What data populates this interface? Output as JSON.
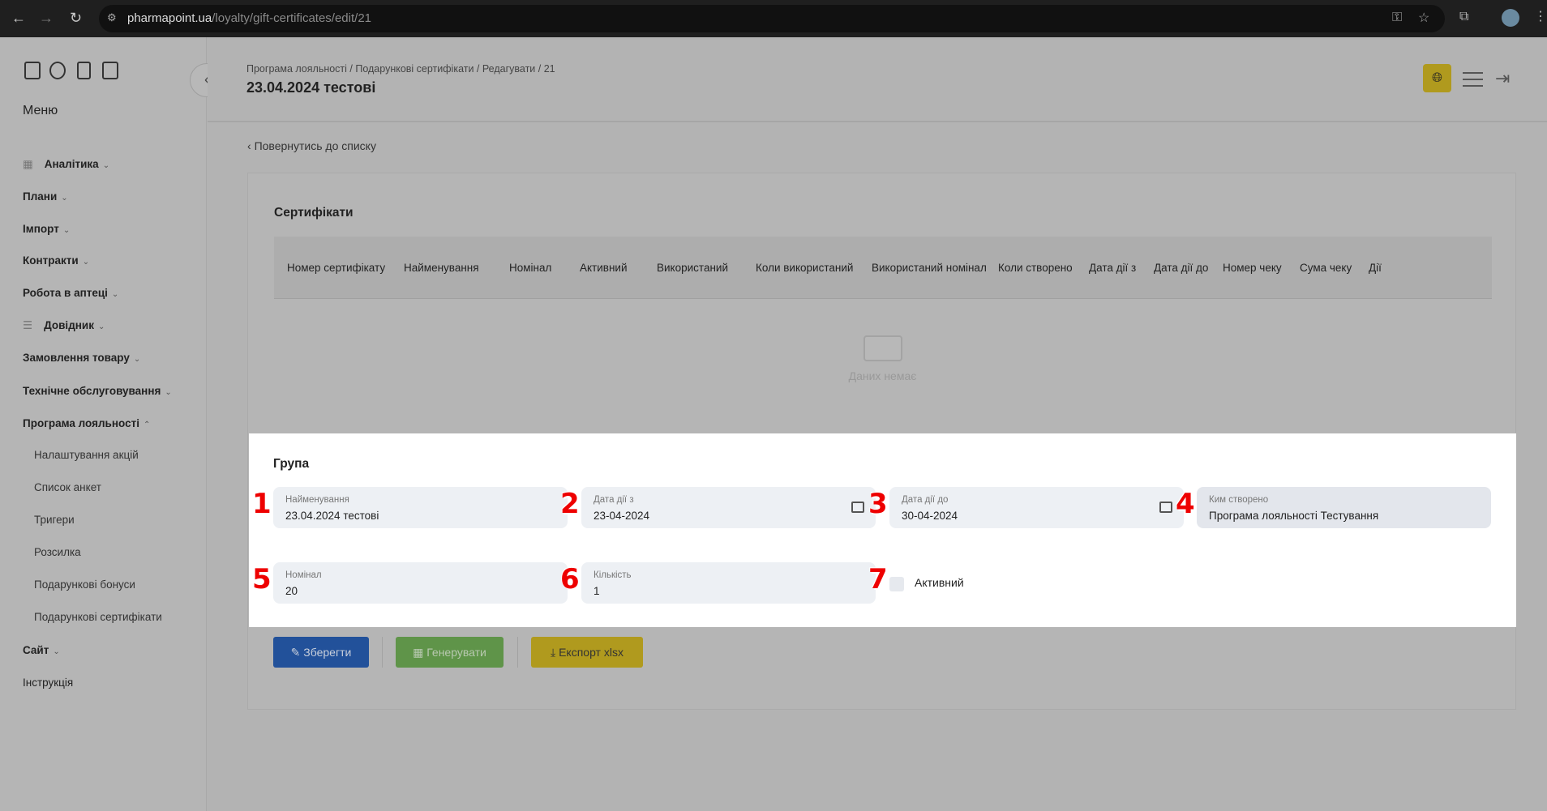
{
  "browser": {
    "url_host": "pharmapoint.ua",
    "url_path": "/loyalty/gift-certificates/edit/21"
  },
  "sidebar": {
    "menu_title": "Меню",
    "items": [
      {
        "label": "Аналітика",
        "icon": "table-icon",
        "expanded": false
      },
      {
        "label": "Плани",
        "expanded": false
      },
      {
        "label": "Імпорт",
        "expanded": false
      },
      {
        "label": "Контракти",
        "expanded": false
      },
      {
        "label": "Робота в аптеці",
        "expanded": false
      },
      {
        "label": "Довідник",
        "icon": "list-icon",
        "expanded": false
      },
      {
        "label": "Замовлення товару",
        "expanded": false
      },
      {
        "label": "Технічне обслуговування",
        "expanded": false
      },
      {
        "label": "Програма лояльності",
        "expanded": true
      }
    ],
    "subitems": [
      "Налаштування акцій",
      "Список анкет",
      "Тригери",
      "Розсилка",
      "Подарункові бонуси",
      "Подарункові сертифікати"
    ],
    "bottom_items": [
      {
        "label": "Сайт",
        "expanded": false
      },
      {
        "label": "Інструкція"
      }
    ]
  },
  "header": {
    "breadcrumb": "Програма лояльності / Подарункові сертифікати / Редагувати / 21",
    "title": "23.04.2024 тестові"
  },
  "back_link": "Повернутись до списку",
  "certificates": {
    "title": "Сертифікати",
    "columns": [
      "Номер сертифікату",
      "Найменування",
      "Номінал",
      "Активний",
      "Використаний",
      "Коли використаний",
      "Використаний номінал",
      "Коли створено",
      "Дата дії з",
      "Дата дії до",
      "Номер чеку",
      "Сума чеку",
      "Дії"
    ],
    "empty_text": "Даних немає"
  },
  "group": {
    "title": "Група",
    "fields": [
      {
        "label": "Найменування",
        "value": "23.04.2024 тестові",
        "marker": "1"
      },
      {
        "label": "Дата дії з",
        "value": "23-04-2024",
        "marker": "2"
      },
      {
        "label": "Дата дії до",
        "value": "30-04-2024",
        "marker": "3"
      },
      {
        "label": "Ким створено",
        "value": "Програма лояльності Тестування",
        "marker": "4"
      },
      {
        "label": "Номінал",
        "value": "20",
        "marker": "5"
      },
      {
        "label": "Кількість",
        "value": "1",
        "marker": "6"
      }
    ],
    "active": {
      "label": "Активний",
      "checked": false,
      "marker": "7"
    }
  },
  "buttons": {
    "save": "Зберегти",
    "generate": "Генерувати",
    "export": "Експорт xlsx"
  },
  "colors": {
    "save": "#22519a",
    "generate": "#5f9449",
    "export": "#b09a1e",
    "accent": "#b09a1e"
  }
}
